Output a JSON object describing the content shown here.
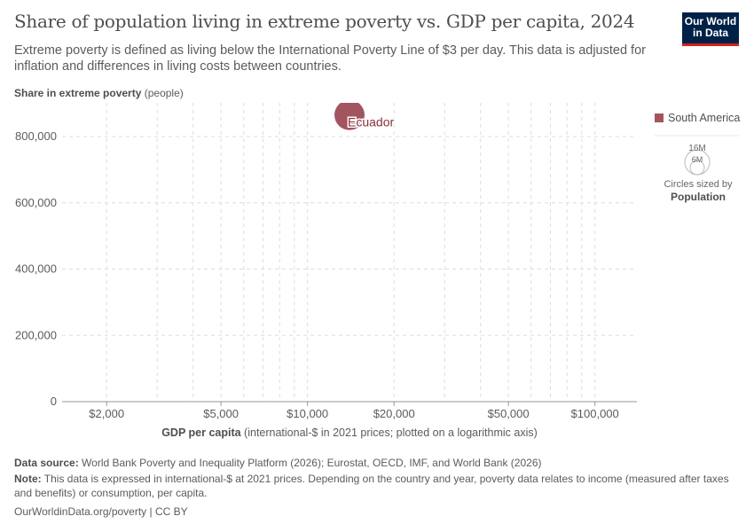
{
  "header": {
    "title": "Share of population living in extreme poverty vs. GDP per capita, 2024",
    "subtitle": "Extreme poverty is defined as living below the International Poverty Line of $3 per day. This data is adjusted for inflation and differences in living costs between countries.",
    "logo": "Our World in Data"
  },
  "chart_data": {
    "type": "scatter",
    "ylabel_bold": "Share in extreme poverty",
    "ylabel_rest": " (people)",
    "xlabel_bold": "GDP per capita",
    "xlabel_rest": " (international-$ in 2021 prices; plotted on a logarithmic axis)",
    "xscale": "log",
    "xlim": [
      1400,
      140000
    ],
    "ylim": [
      0,
      800000
    ],
    "xticks": [
      {
        "v": 2000,
        "label": "$2,000"
      },
      {
        "v": 5000,
        "label": "$5,000"
      },
      {
        "v": 10000,
        "label": "$10,000"
      },
      {
        "v": 20000,
        "label": "$20,000"
      },
      {
        "v": 50000,
        "label": "$50,000"
      },
      {
        "v": 100000,
        "label": "$100,000"
      }
    ],
    "yticks": [
      {
        "v": 0,
        "label": "0"
      },
      {
        "v": 200000,
        "label": "200,000"
      },
      {
        "v": 400000,
        "label": "400,000"
      },
      {
        "v": 600000,
        "label": "600,000"
      },
      {
        "v": 800000,
        "label": "800,000"
      }
    ],
    "grid": true,
    "points": [
      {
        "label": "Ecuador",
        "x": 14000,
        "y": 865000,
        "population": 18000000,
        "region": "South America"
      }
    ],
    "legend": {
      "placement": "right",
      "entries": [
        {
          "name": "South America",
          "color": "#a2555f"
        }
      ],
      "size_legend": {
        "large": "16M",
        "small": "6M",
        "caption": "Circles sized by",
        "variable": "Population"
      }
    },
    "label_color": "#883039"
  },
  "footer": {
    "source_label": "Data source:",
    "source": " World Bank Poverty and Inequality Platform (2026); Eurostat, OECD, IMF, and World Bank (2026)",
    "note_label": "Note:",
    "note": " This data is expressed in international-$ at 2021 prices. Depending on the country and year, poverty data relates to income (measured after taxes and benefits) or consumption, per capita.",
    "credit": "OurWorldinData.org/poverty | CC BY"
  }
}
